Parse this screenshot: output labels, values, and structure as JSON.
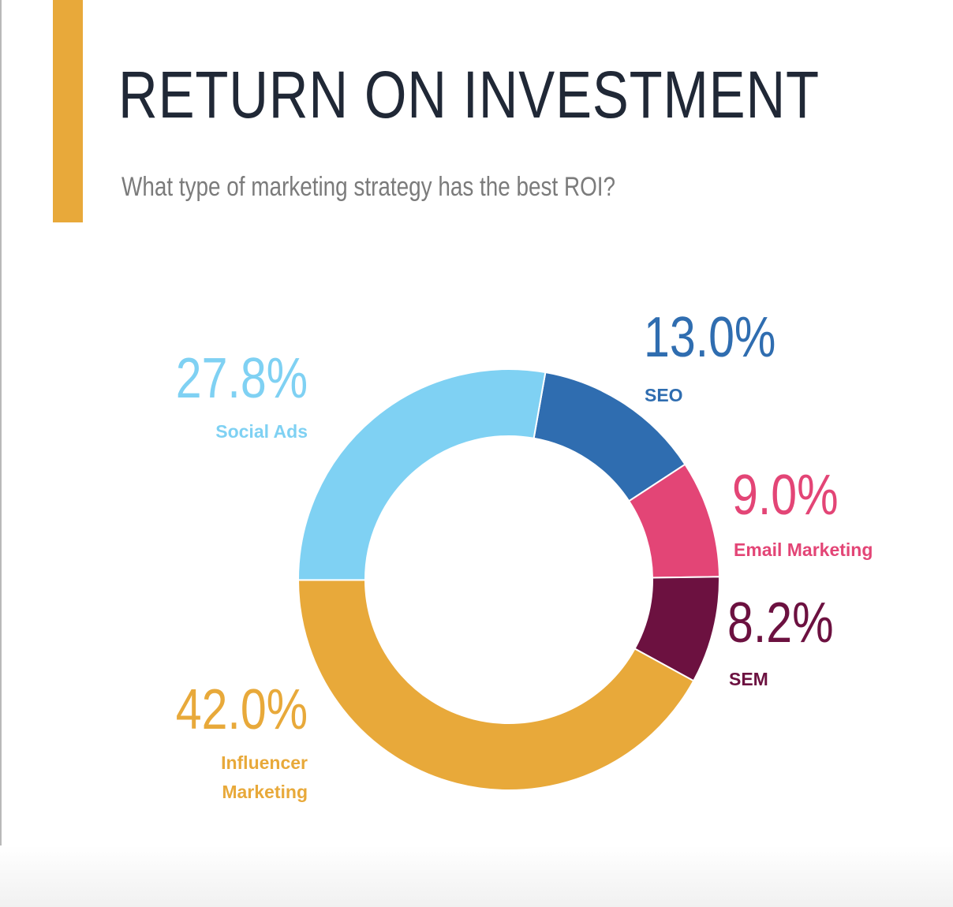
{
  "title": "RETURN ON INVESTMENT",
  "subtitle": "What type of marketing strategy has the best ROI?",
  "colors": {
    "accent_bar": "#e8a93a",
    "title": "#202836",
    "subtitle": "#7b7b7b"
  },
  "chart_data": {
    "type": "pie",
    "donut": true,
    "slices": [
      {
        "label": "SEO",
        "value": 13.0,
        "display": "13.0%",
        "color": "#2f6db0"
      },
      {
        "label": "Email Marketing",
        "value": 9.0,
        "display": "9.0%",
        "color": "#e34576"
      },
      {
        "label": "SEM",
        "value": 8.2,
        "display": "8.2%",
        "color": "#6c1140"
      },
      {
        "label": "Influencer Marketing",
        "label_lines": [
          "Influencer",
          "Marketing"
        ],
        "value": 42.0,
        "display": "42.0%",
        "color": "#e8a93a"
      },
      {
        "label": "Social Ads",
        "value": 27.8,
        "display": "27.8%",
        "color": "#7fd1f3"
      }
    ]
  }
}
